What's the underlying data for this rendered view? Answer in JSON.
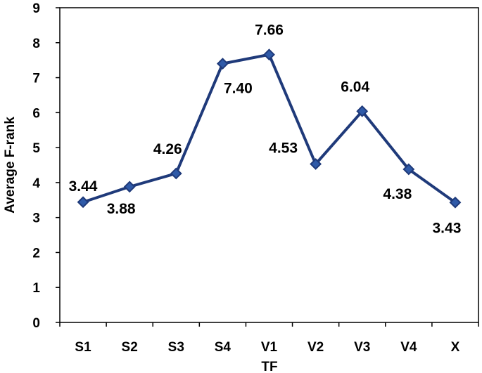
{
  "chart_data": {
    "type": "line",
    "xlabel": "TF",
    "ylabel": "Average F-rank",
    "ylim": [
      0,
      9
    ],
    "yticks": [
      0,
      1,
      2,
      3,
      4,
      5,
      6,
      7,
      8,
      9
    ],
    "categories": [
      "S1",
      "S2",
      "S3",
      "S4",
      "V1",
      "V2",
      "V3",
      "V4",
      "X"
    ],
    "series": [
      {
        "values": [
          3.44,
          3.88,
          4.26,
          7.4,
          7.66,
          4.53,
          6.04,
          4.38,
          3.43
        ],
        "labels": [
          "3.44",
          "3.88",
          "4.26",
          "7.40",
          "7.66",
          "4.53",
          "6.04",
          "4.38",
          "3.43"
        ]
      }
    ],
    "grid": false,
    "line_color": "#1f3a7a",
    "marker_color": "#2f5aa8",
    "marker": "diamond"
  }
}
